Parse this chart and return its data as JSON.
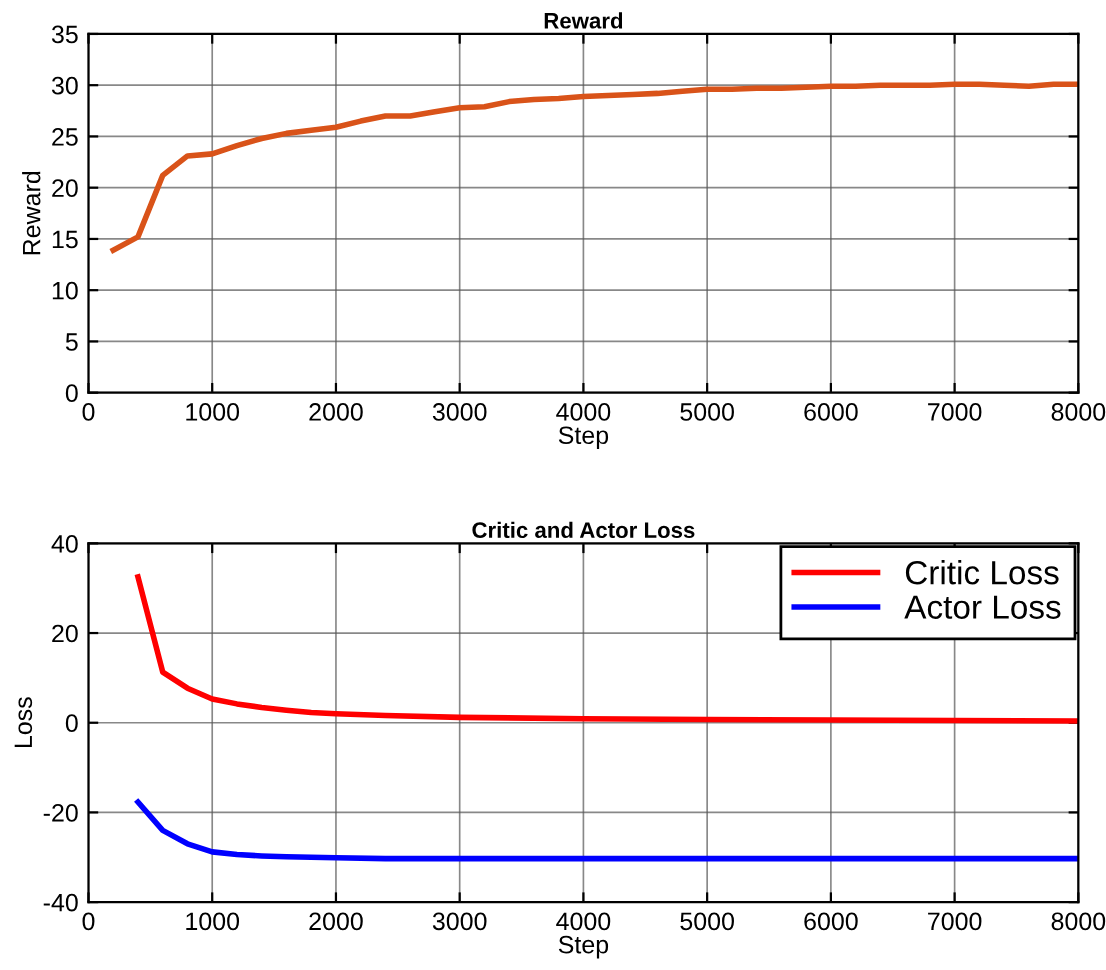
{
  "chart_data": [
    {
      "type": "line",
      "title": "Reward",
      "xlabel": "Step",
      "ylabel": "Reward",
      "xlim": [
        0,
        8000
      ],
      "xticks": [
        0,
        1000,
        2000,
        3000,
        4000,
        5000,
        6000,
        7000,
        8000
      ],
      "ylim": [
        0,
        35
      ],
      "yticks": [
        0,
        5,
        10,
        15,
        20,
        25,
        30,
        35
      ],
      "grid": true,
      "x": [
        200,
        400,
        600,
        800,
        1000,
        1200,
        1400,
        1600,
        1800,
        2000,
        2200,
        2400,
        2600,
        2800,
        3000,
        3200,
        3400,
        3600,
        3800,
        4000,
        4200,
        4400,
        4600,
        4800,
        5000,
        5200,
        5400,
        5600,
        5800,
        6000,
        6200,
        6400,
        6600,
        6800,
        7000,
        7200,
        7400,
        7600,
        7800,
        8000
      ],
      "series": [
        {
          "color": "#d95319",
          "values": [
            13.9,
            15.2,
            21.2,
            23.1,
            23.3,
            24.1,
            24.8,
            25.3,
            25.6,
            25.9,
            26.5,
            27.0,
            27.0,
            27.4,
            27.8,
            27.9,
            28.4,
            28.6,
            28.7,
            28.9,
            29.0,
            29.1,
            29.2,
            29.4,
            29.6,
            29.6,
            29.7,
            29.7,
            29.8,
            29.9,
            29.9,
            30.0,
            30.0,
            30.0,
            30.1,
            30.1,
            30.0,
            29.9,
            30.1,
            30.1
          ]
        }
      ]
    },
    {
      "type": "line",
      "title": "Critic and Actor Loss",
      "xlabel": "Step",
      "ylabel": "Loss",
      "xlim": [
        0,
        8000
      ],
      "xticks": [
        0,
        1000,
        2000,
        3000,
        4000,
        5000,
        6000,
        7000,
        8000
      ],
      "ylim": [
        -40,
        40
      ],
      "yticks": [
        -40,
        -20,
        0,
        20,
        40
      ],
      "grid": true,
      "legend": "top right",
      "x": [
        400,
        600,
        800,
        1000,
        1200,
        1400,
        1600,
        1800,
        2000,
        2400,
        3000,
        4000,
        5000,
        6000,
        7000,
        8000
      ],
      "series": [
        {
          "name": "Critic Loss",
          "color": "#ff0000",
          "values": [
            32.5,
            11.3,
            7.7,
            5.3,
            4.2,
            3.4,
            2.8,
            2.3,
            2.0,
            1.6,
            1.2,
            0.9,
            0.7,
            0.6,
            0.5,
            0.4
          ]
        },
        {
          "name": "Actor Loss",
          "color": "#0000ff",
          "values": [
            -17.7,
            -24,
            -27,
            -28.8,
            -29.4,
            -29.7,
            -29.9,
            -30.0,
            -30.1,
            -30.3,
            -30.3,
            -30.3,
            -30.3,
            -30.3,
            -30.3,
            -30.3
          ]
        }
      ]
    }
  ]
}
